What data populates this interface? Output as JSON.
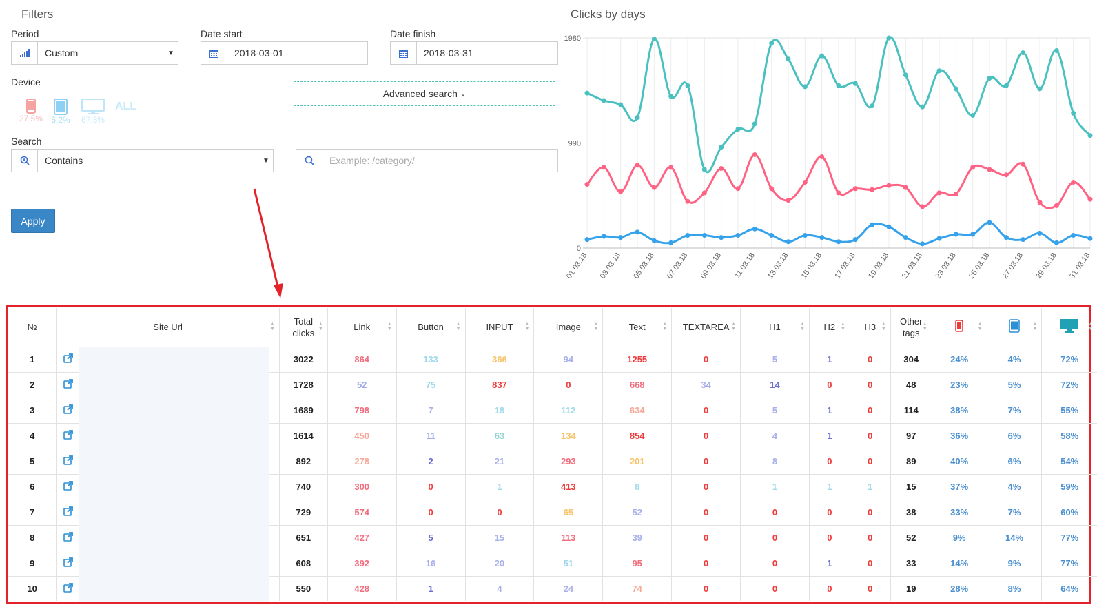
{
  "filters": {
    "title": "Filters",
    "period": {
      "label": "Period",
      "value": "Custom",
      "icon": "bar-signal-icon"
    },
    "date_start": {
      "label": "Date start",
      "value": "2018-03-01",
      "icon": "calendar-icon"
    },
    "date_finish": {
      "label": "Date finish",
      "value": "2018-03-31",
      "icon": "calendar-icon"
    },
    "device": {
      "label": "Device",
      "items": [
        {
          "name": "phone",
          "percent": "27.5%",
          "color": "#f5a3a0"
        },
        {
          "name": "tablet",
          "percent": "5.2%",
          "color": "#8ed1f5"
        },
        {
          "name": "desktop",
          "percent": "67.3%",
          "color": "#bfe6f8"
        }
      ],
      "all_label": "ALL"
    },
    "advanced_search": "Advanced search",
    "search": {
      "label": "Search",
      "mode": "Contains",
      "placeholder": "Example: /category/"
    },
    "apply": "Apply"
  },
  "chart_data": {
    "type": "line",
    "title": "Clicks by days",
    "x": [
      "01.03.18",
      "02.03.18",
      "03.03.18",
      "04.03.18",
      "05.03.18",
      "06.03.18",
      "07.03.18",
      "08.03.18",
      "09.03.18",
      "10.03.18",
      "11.03.18",
      "12.03.18",
      "13.03.18",
      "14.03.18",
      "15.03.18",
      "16.03.18",
      "17.03.18",
      "18.03.18",
      "19.03.18",
      "20.03.18",
      "21.03.18",
      "22.03.18",
      "23.03.18",
      "24.03.18",
      "25.03.18",
      "26.03.18",
      "27.03.18",
      "28.03.18",
      "29.03.18",
      "30.03.18",
      "31.03.18"
    ],
    "tick_labels": [
      "01.03.18",
      "03.03.18",
      "05.03.18",
      "07.03.18",
      "09.03.18",
      "11.03.18",
      "13.03.18",
      "15.03.18",
      "17.03.18",
      "19.03.18",
      "21.03.18",
      "23.03.18",
      "25.03.18",
      "27.03.18",
      "29.03.18",
      "31.03.18"
    ],
    "yticks": [
      "0",
      "990",
      "1980"
    ],
    "ylim": [
      0,
      1980
    ],
    "series": [
      {
        "color": "#4bc0c0",
        "values": [
          1460,
          1390,
          1350,
          1230,
          1970,
          1430,
          1530,
          740,
          950,
          1120,
          1170,
          1930,
          1780,
          1520,
          1810,
          1530,
          1550,
          1340,
          1980,
          1630,
          1330,
          1670,
          1500,
          1250,
          1600,
          1530,
          1840,
          1500,
          1860,
          1270,
          1060
        ]
      },
      {
        "color": "#ff6384",
        "values": [
          600,
          760,
          530,
          780,
          570,
          760,
          440,
          520,
          750,
          560,
          880,
          560,
          450,
          620,
          860,
          520,
          560,
          550,
          590,
          570,
          390,
          520,
          510,
          760,
          740,
          690,
          790,
          430,
          400,
          620,
          460
        ]
      },
      {
        "color": "#36a2eb",
        "values": [
          80,
          110,
          100,
          150,
          70,
          50,
          120,
          120,
          100,
          120,
          180,
          120,
          60,
          120,
          100,
          60,
          80,
          220,
          200,
          100,
          40,
          90,
          130,
          130,
          240,
          100,
          80,
          140,
          50,
          120,
          90
        ]
      }
    ]
  },
  "table": {
    "headers": [
      "№",
      "Site Url",
      "Total clicks",
      "Link",
      "Button",
      "INPUT",
      "Image",
      "Text",
      "TEXTAREA",
      "H1",
      "H2",
      "H3",
      "Other tags",
      "phone",
      "tablet",
      "desktop"
    ],
    "header_icons": [
      "phone-icon",
      "tablet-icon",
      "desktop-icon"
    ],
    "rows": [
      {
        "n": "1",
        "total": "3022",
        "link": "864",
        "button": "133",
        "input": "366",
        "image": "94",
        "text": "1255",
        "textarea": "0",
        "h1": "5",
        "h2": "1",
        "h3": "0",
        "other": "304",
        "phone": "24%",
        "tablet": "4%",
        "desktop": "72%"
      },
      {
        "n": "2",
        "total": "1728",
        "link": "52",
        "button": "75",
        "input": "837",
        "image": "0",
        "text": "668",
        "textarea": "34",
        "h1": "14",
        "h2": "0",
        "h3": "0",
        "other": "48",
        "phone": "23%",
        "tablet": "5%",
        "desktop": "72%"
      },
      {
        "n": "3",
        "total": "1689",
        "link": "798",
        "button": "7",
        "input": "18",
        "image": "112",
        "text": "634",
        "textarea": "0",
        "h1": "5",
        "h2": "1",
        "h3": "0",
        "other": "114",
        "phone": "38%",
        "tablet": "7%",
        "desktop": "55%"
      },
      {
        "n": "4",
        "total": "1614",
        "link": "450",
        "button": "11",
        "input": "63",
        "image": "134",
        "text": "854",
        "textarea": "0",
        "h1": "4",
        "h2": "1",
        "h3": "0",
        "other": "97",
        "phone": "36%",
        "tablet": "6%",
        "desktop": "58%"
      },
      {
        "n": "5",
        "total": "892",
        "link": "278",
        "button": "2",
        "input": "21",
        "image": "293",
        "text": "201",
        "textarea": "0",
        "h1": "8",
        "h2": "0",
        "h3": "0",
        "other": "89",
        "phone": "40%",
        "tablet": "6%",
        "desktop": "54%"
      },
      {
        "n": "6",
        "total": "740",
        "link": "300",
        "button": "0",
        "input": "1",
        "image": "413",
        "text": "8",
        "textarea": "0",
        "h1": "1",
        "h2": "1",
        "h3": "1",
        "other": "15",
        "phone": "37%",
        "tablet": "4%",
        "desktop": "59%"
      },
      {
        "n": "7",
        "total": "729",
        "link": "574",
        "button": "0",
        "input": "0",
        "image": "65",
        "text": "52",
        "textarea": "0",
        "h1": "0",
        "h2": "0",
        "h3": "0",
        "other": "38",
        "phone": "33%",
        "tablet": "7%",
        "desktop": "60%"
      },
      {
        "n": "8",
        "total": "651",
        "link": "427",
        "button": "5",
        "input": "15",
        "image": "113",
        "text": "39",
        "textarea": "0",
        "h1": "0",
        "h2": "0",
        "h3": "0",
        "other": "52",
        "phone": "9%",
        "tablet": "14%",
        "desktop": "77%"
      },
      {
        "n": "9",
        "total": "608",
        "link": "392",
        "button": "16",
        "input": "20",
        "image": "51",
        "text": "95",
        "textarea": "0",
        "h1": "0",
        "h2": "1",
        "h3": "0",
        "other": "33",
        "phone": "14%",
        "tablet": "9%",
        "desktop": "77%"
      },
      {
        "n": "10",
        "total": "550",
        "link": "428",
        "button": "1",
        "input": "4",
        "image": "24",
        "text": "74",
        "textarea": "0",
        "h1": "0",
        "h2": "0",
        "h3": "0",
        "other": "19",
        "phone": "28%",
        "tablet": "8%",
        "desktop": "64%"
      }
    ],
    "colors": {
      "link": [
        "#f26d7d",
        "#9fa8e8",
        "#f26d7d",
        "#f5a898",
        "#f5a898",
        "#f26d7d",
        "#f26d7d",
        "#f26d7d",
        "#f26d7d",
        "#f26d7d"
      ],
      "button": [
        "#9ed9ec",
        "#9ed9ec",
        "#a8b0ea",
        "#a8b0ea",
        "#6a6fd0",
        "#ef3a3a",
        "#ef3a3a",
        "#6a6fd0",
        "#a8b0ea",
        "#6a6fd0"
      ],
      "input": [
        "#f7c36a",
        "#ef3a3a",
        "#9ed9ec",
        "#8fd3d3",
        "#a8b0ea",
        "#9ed9ec",
        "#ef3a3a",
        "#a8b0ea",
        "#a8b0ea",
        "#a8b0ea"
      ],
      "image": [
        "#a8b0ea",
        "#ef3a3a",
        "#9ed9ec",
        "#f7c36a",
        "#f26d7d",
        "#ef3a3a",
        "#f7c36a",
        "#f26d7d",
        "#9ed9ec",
        "#a8b0ea"
      ],
      "text": [
        "#ef3a3a",
        "#f26d7d",
        "#f5a898",
        "#ef3a3a",
        "#f7c36a",
        "#9ed9ec",
        "#a8b0ea",
        "#a8b0ea",
        "#f26d7d",
        "#f5a898"
      ],
      "textarea": [
        "#ef3a3a",
        "#a8b0ea",
        "#ef3a3a",
        "#ef3a3a",
        "#ef3a3a",
        "#ef3a3a",
        "#ef3a3a",
        "#ef3a3a",
        "#ef3a3a",
        "#ef3a3a"
      ],
      "h1": [
        "#a8b0ea",
        "#6a6fd0",
        "#a8b0ea",
        "#a8b0ea",
        "#a8b0ea",
        "#9ed9ec",
        "#ef3a3a",
        "#ef3a3a",
        "#ef3a3a",
        "#ef3a3a"
      ],
      "h2": [
        "#6a6fd0",
        "#ef3a3a",
        "#6a6fd0",
        "#6a6fd0",
        "#ef3a3a",
        "#9ed9ec",
        "#ef3a3a",
        "#ef3a3a",
        "#6a6fd0",
        "#ef3a3a"
      ],
      "h3": [
        "#ef3a3a",
        "#ef3a3a",
        "#ef3a3a",
        "#ef3a3a",
        "#ef3a3a",
        "#9ed9ec",
        "#ef3a3a",
        "#ef3a3a",
        "#ef3a3a",
        "#ef3a3a"
      ],
      "percent": "#4a8fd0",
      "accent_border": "#e32229"
    }
  }
}
